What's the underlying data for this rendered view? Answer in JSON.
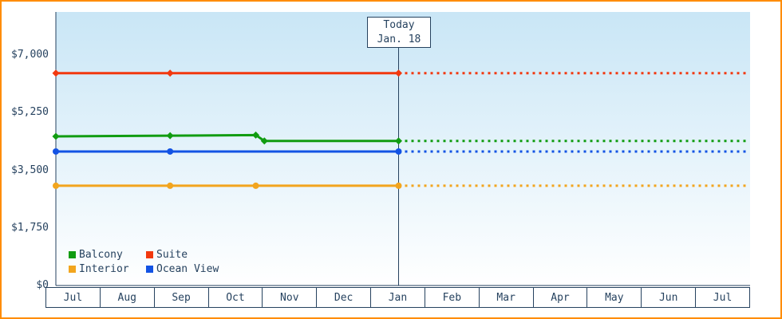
{
  "colors": {
    "frame_border": "#ff8c00",
    "axis_and_text": "#26425f",
    "plot_bg_top": "#c9e6f6",
    "plot_bg_bottom": "#ffffff"
  },
  "legend_order": [
    "Balcony",
    "Suite",
    "Interior",
    "Ocean View"
  ],
  "chart_data": {
    "type": "line",
    "title": "",
    "xlabel": "",
    "ylabel": "",
    "currency": "USD",
    "ylim": [
      0,
      7000
    ],
    "grid": false,
    "legend_position": "bottom-left-inside",
    "y_ticks": [
      {
        "value": 0,
        "label": "$0"
      },
      {
        "value": 1750,
        "label": "$1,750"
      },
      {
        "value": 3500,
        "label": "$3,500"
      },
      {
        "value": 5250,
        "label": "$5,250"
      },
      {
        "value": 7000,
        "label": "$7,000"
      }
    ],
    "x_categories": [
      "Jul",
      "Aug",
      "Sep",
      "Oct",
      "Nov",
      "Dec",
      "Jan",
      "Feb",
      "Mar",
      "Apr",
      "May",
      "Jun",
      "Jul"
    ],
    "today": {
      "label": "Today",
      "date": "Jan. 18",
      "x_index": 6
    },
    "series": [
      {
        "name": "Suite",
        "color": "#f2390f",
        "marker": "diamond",
        "observed": [
          [
            0,
            6450
          ],
          [
            2,
            6450
          ],
          [
            6,
            6450
          ]
        ],
        "projected_value": 6450,
        "projected_style": "dotted"
      },
      {
        "name": "Balcony",
        "color": "#119c11",
        "marker": "diamond",
        "observed": [
          [
            0,
            4530
          ],
          [
            2,
            4550
          ],
          [
            3.5,
            4570
          ],
          [
            3.65,
            4390
          ],
          [
            6,
            4390
          ]
        ],
        "projected_value": 4390,
        "projected_style": "dotted"
      },
      {
        "name": "Ocean View",
        "color": "#1353e4",
        "marker": "circle",
        "observed": [
          [
            0,
            4070
          ],
          [
            2,
            4070
          ],
          [
            6,
            4070
          ]
        ],
        "projected_value": 4070,
        "projected_style": "dotted"
      },
      {
        "name": "Interior",
        "color": "#f2a51e",
        "marker": "circle",
        "observed": [
          [
            0,
            3030
          ],
          [
            2,
            3030
          ],
          [
            3.5,
            3030
          ],
          [
            6,
            3030
          ]
        ],
        "projected_value": 3030,
        "projected_style": "dotted"
      }
    ]
  }
}
